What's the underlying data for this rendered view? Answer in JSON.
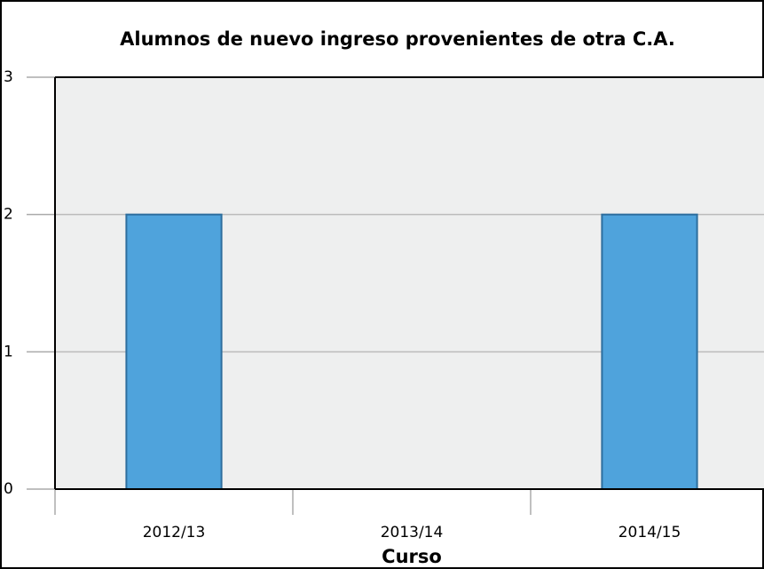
{
  "chart_data": {
    "type": "bar",
    "title": "Alumnos de nuevo ingreso provenientes de otra C.A.",
    "x_label": "Curso",
    "categories": [
      "2012/13",
      "2013/14",
      "2014/15"
    ],
    "values": [
      2,
      0,
      2
    ],
    "color": "#4fa3dc",
    "ylim": [
      0,
      3
    ],
    "yticks": [
      0,
      1,
      2,
      3
    ],
    "grid": true
  }
}
